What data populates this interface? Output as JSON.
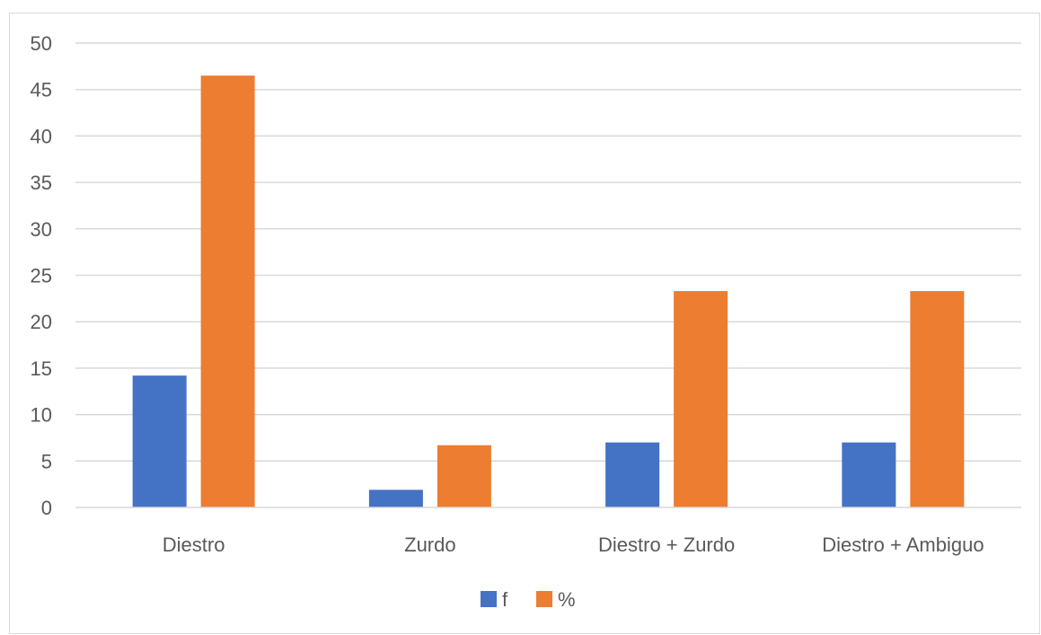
{
  "chart_data": {
    "type": "bar",
    "categories": [
      "Diestro",
      "Zurdo",
      "Diestro + Zurdo",
      "Diestro + Ambiguo"
    ],
    "series": [
      {
        "name": "f",
        "values": [
          14.2,
          1.9,
          7,
          7
        ],
        "color": "#4472c4"
      },
      {
        "name": "%",
        "values": [
          46.5,
          6.7,
          23.3,
          23.3
        ],
        "color": "#ed7d31"
      }
    ],
    "y_ticks": [
      "0",
      "5",
      "10",
      "15",
      "20",
      "25",
      "30",
      "35",
      "40",
      "45",
      "50"
    ],
    "ylim": [
      0,
      50
    ],
    "grid": true,
    "legend_position": "bottom",
    "gridline_color": "#d9d9d9"
  }
}
